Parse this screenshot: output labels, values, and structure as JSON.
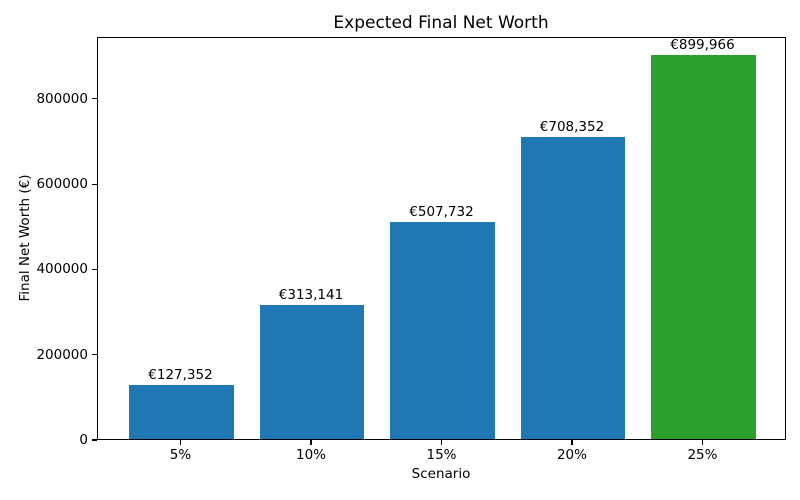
{
  "chart_data": {
    "type": "bar",
    "title": "Expected Final Net Worth",
    "xlabel": "Scenario",
    "ylabel": "Final Net Worth (€)",
    "categories": [
      "5%",
      "10%",
      "15%",
      "20%",
      "25%"
    ],
    "values": [
      127352,
      313141,
      507732,
      708352,
      899966
    ],
    "value_labels": [
      "€127,352",
      "€313,141",
      "€507,732",
      "€708,352",
      "€899,966"
    ],
    "bar_colors": [
      "#1f77b4",
      "#1f77b4",
      "#1f77b4",
      "#1f77b4",
      "#2ca02c"
    ],
    "accent_blue": "#1f77b4",
    "accent_green": "#2ca02c",
    "yticks": [
      0,
      200000,
      400000,
      600000,
      800000
    ],
    "ytick_labels": [
      "0",
      "200000",
      "400000",
      "600000",
      "800000"
    ],
    "ylim": [
      0,
      944964
    ],
    "xlim": [
      -0.64,
      4.64
    ],
    "bar_width_units": 0.8,
    "grid": false,
    "legend": null
  }
}
